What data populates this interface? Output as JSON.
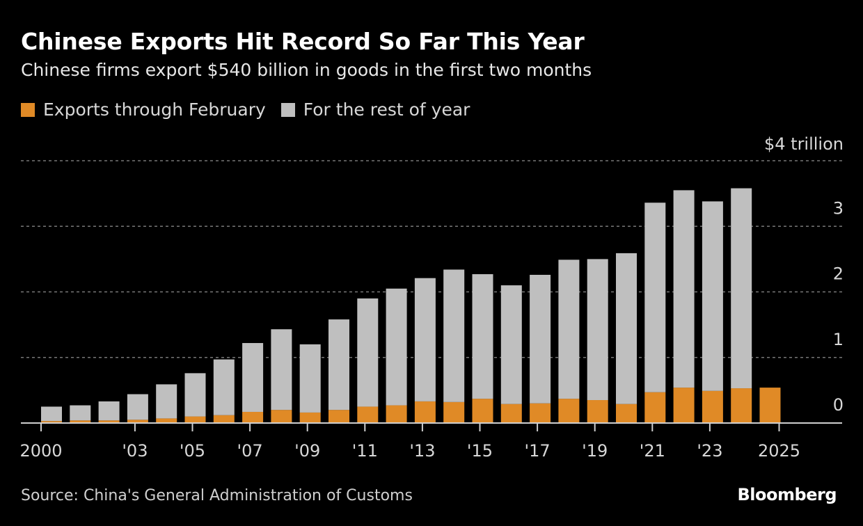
{
  "header": {
    "title": "Chinese Exports Hit Record So Far This Year",
    "subtitle": "Chinese firms export $540 billion in goods in the first two months"
  },
  "legend": [
    {
      "label": "Exports through February",
      "color": "#e08a26"
    },
    {
      "label": "For the rest of year",
      "color": "#bfbfbf"
    }
  ],
  "footer": {
    "source": "Source: China's General Administration of Customs",
    "brand": "Bloomberg"
  },
  "chart_data": {
    "type": "bar",
    "stacked": true,
    "title": "Chinese Exports Hit Record So Far This Year",
    "subtitle": "Chinese firms export $540 billion in goods in the first two months",
    "xlabel": "",
    "ylabel": "$ trillion",
    "unit_label": "$4 trillion",
    "ylim": [
      0,
      4
    ],
    "yticks": [
      0,
      1,
      2,
      3,
      4
    ],
    "ytick_labels": [
      "0",
      "1",
      "2",
      "3",
      "$4 trillion"
    ],
    "ygrid": true,
    "y_axis_side": "right",
    "legend_position": "top-left",
    "categories": [
      "2000",
      "2001",
      "2002",
      "2003",
      "2004",
      "2005",
      "2006",
      "2007",
      "2008",
      "2009",
      "2010",
      "2011",
      "2012",
      "2013",
      "2014",
      "2015",
      "2016",
      "2017",
      "2018",
      "2019",
      "2020",
      "2021",
      "2022",
      "2023",
      "2024",
      "2025"
    ],
    "xticks": [
      "2000",
      "2003",
      "2005",
      "2007",
      "2009",
      "2011",
      "2013",
      "2015",
      "2017",
      "2019",
      "2021",
      "2023",
      "2025"
    ],
    "xtick_labels": [
      "2000",
      "'03",
      "'05",
      "'07",
      "'09",
      "'11",
      "'13",
      "'15",
      "'17",
      "'19",
      "'21",
      "'23",
      "2025"
    ],
    "series": [
      {
        "name": "Exports through February",
        "color": "#e08a26",
        "values": [
          0.03,
          0.04,
          0.04,
          0.05,
          0.07,
          0.1,
          0.12,
          0.17,
          0.2,
          0.16,
          0.2,
          0.25,
          0.27,
          0.33,
          0.32,
          0.37,
          0.29,
          0.3,
          0.37,
          0.35,
          0.29,
          0.47,
          0.54,
          0.49,
          0.53,
          0.54
        ]
      },
      {
        "name": "For the rest of year",
        "color": "#bfbfbf",
        "values": [
          0.22,
          0.23,
          0.29,
          0.39,
          0.52,
          0.66,
          0.85,
          1.05,
          1.23,
          1.04,
          1.38,
          1.65,
          1.78,
          1.88,
          2.02,
          1.9,
          1.81,
          1.96,
          2.12,
          2.15,
          2.3,
          2.89,
          3.01,
          2.89,
          3.05,
          0
        ]
      }
    ]
  }
}
